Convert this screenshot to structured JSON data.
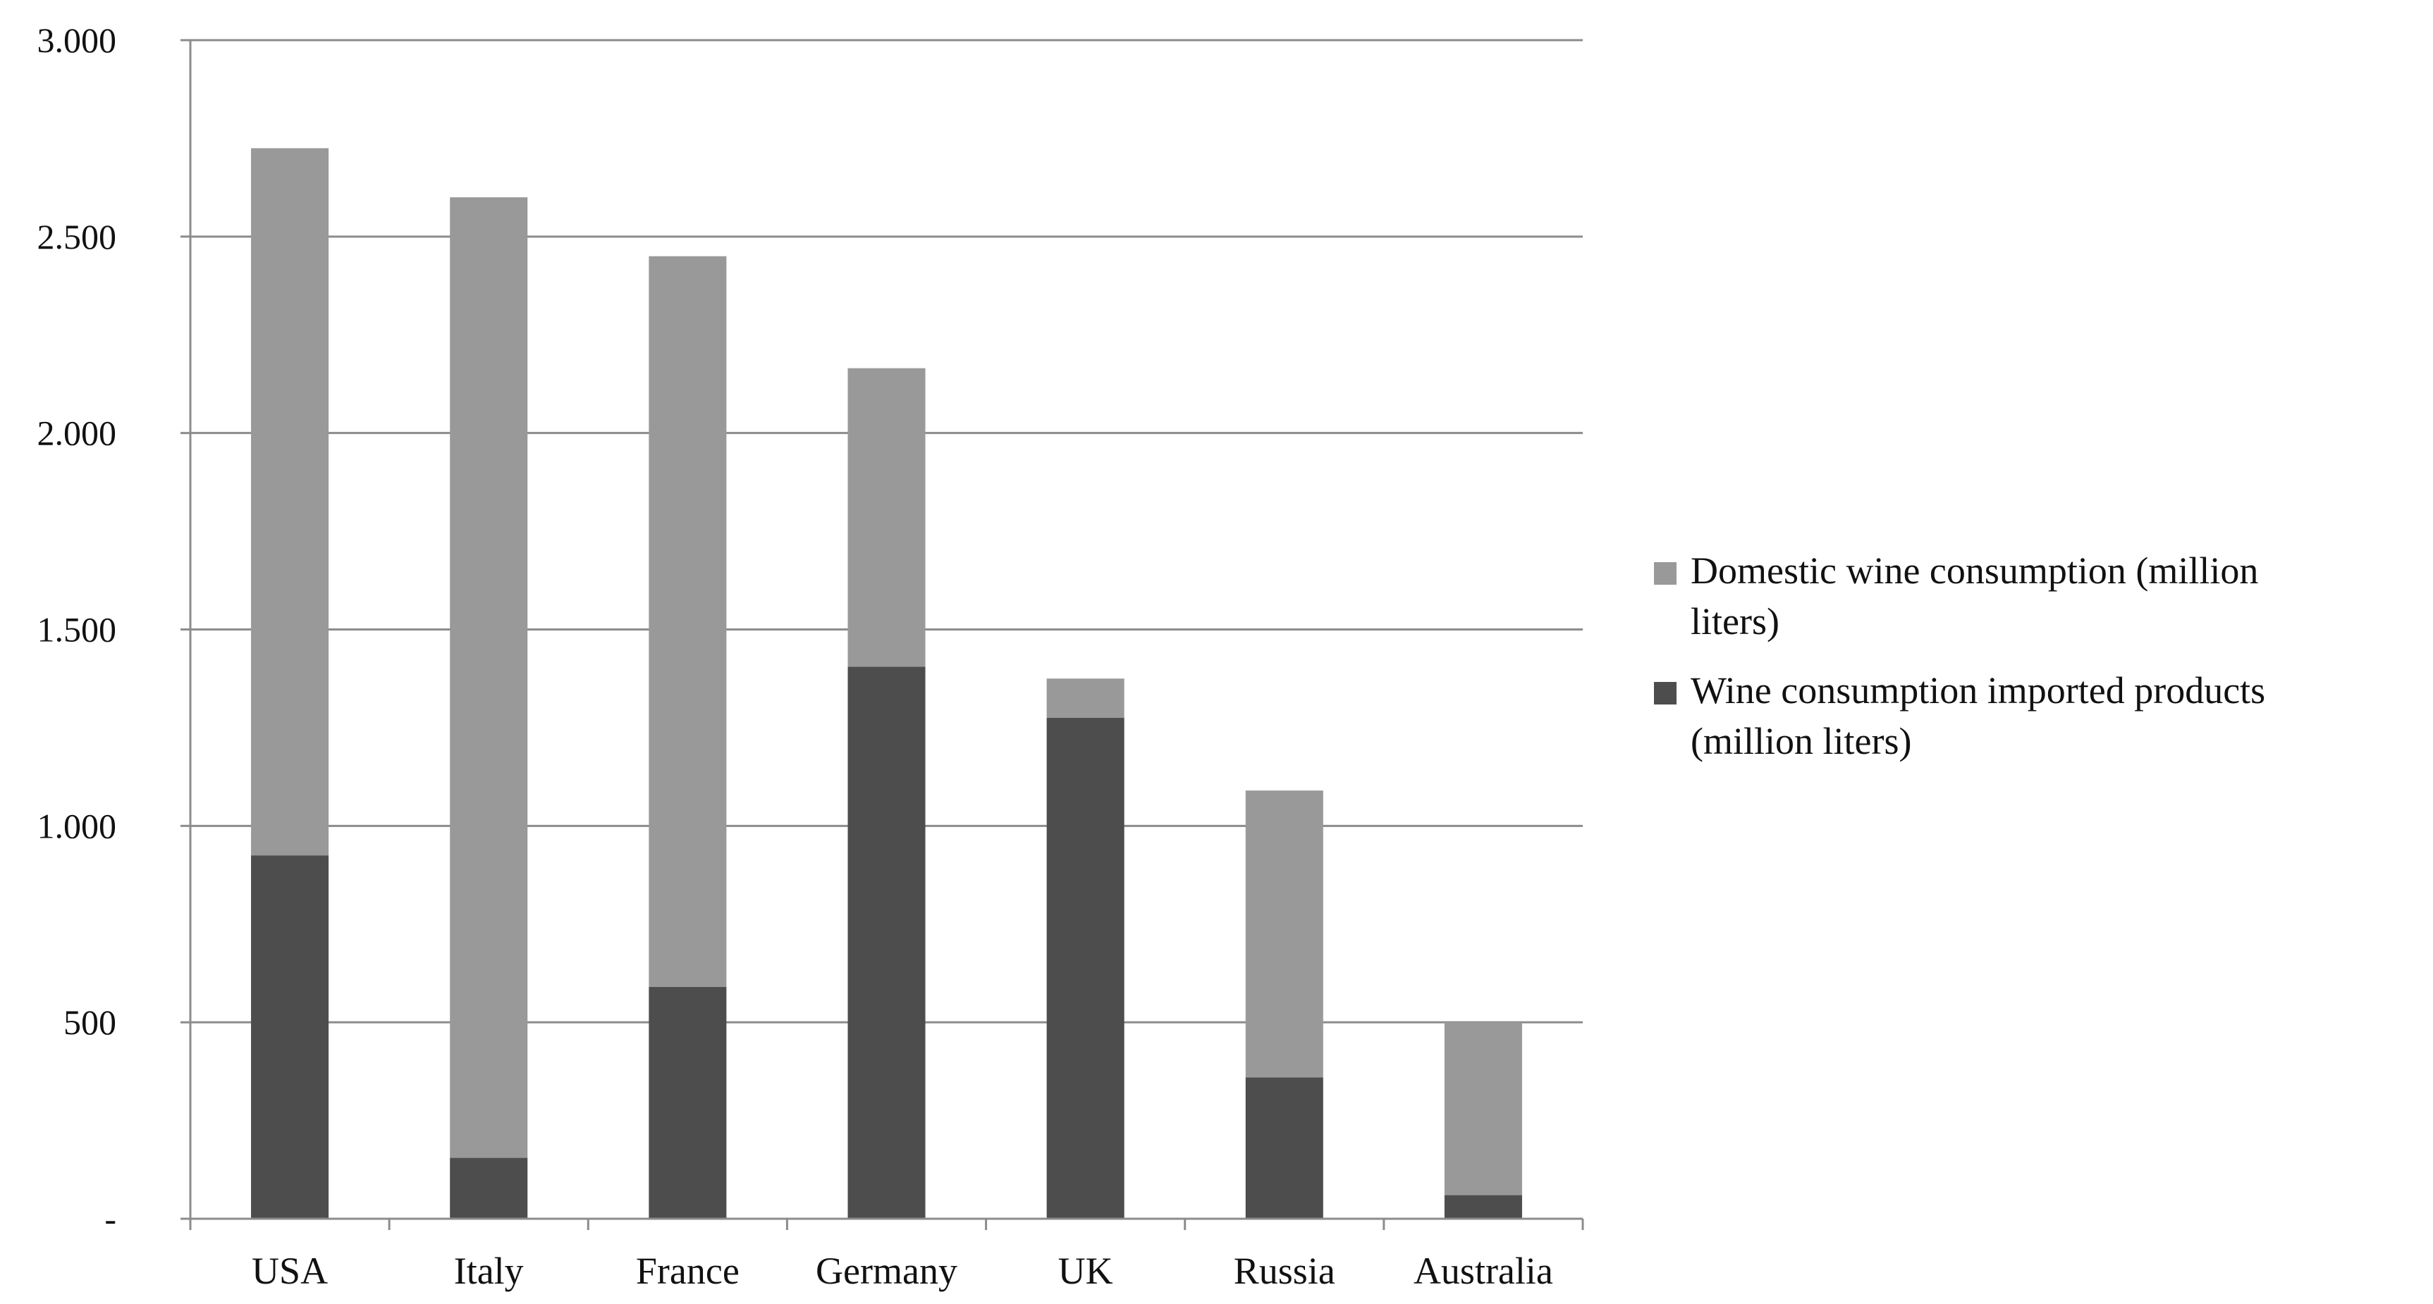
{
  "chart_data": {
    "type": "bar",
    "stacked": true,
    "categories": [
      "USA",
      "Italy",
      "France",
      "Germany",
      "UK",
      "Russia",
      "Australia"
    ],
    "series": [
      {
        "name": "Wine consumption imported products (million liters)",
        "name_lines": [
          "Wine consumption imported products",
          "(million liters)"
        ],
        "color": "#4d4d4d",
        "values": [
          925,
          155,
          590,
          1405,
          1275,
          360,
          60
        ]
      },
      {
        "name": "Domestic wine consumption (million liters)",
        "name_lines": [
          "Domestic wine consumption (million",
          "liters)"
        ],
        "color": "#999999",
        "values": [
          1800,
          2445,
          1860,
          760,
          100,
          730,
          440
        ]
      }
    ],
    "legend_order": [
      1,
      0
    ],
    "yticks": [
      {
        "value": 0,
        "label": "-"
      },
      {
        "value": 500,
        "label": "500"
      },
      {
        "value": 1000,
        "label": "1.000"
      },
      {
        "value": 1500,
        "label": "1.500"
      },
      {
        "value": 2000,
        "label": "2.000"
      },
      {
        "value": 2500,
        "label": "2.500"
      },
      {
        "value": 3000,
        "label": "3.000"
      }
    ],
    "ylim": [
      0,
      3000
    ],
    "grid": true,
    "legend_position": "right",
    "title": "",
    "xlabel": "",
    "ylabel": ""
  }
}
